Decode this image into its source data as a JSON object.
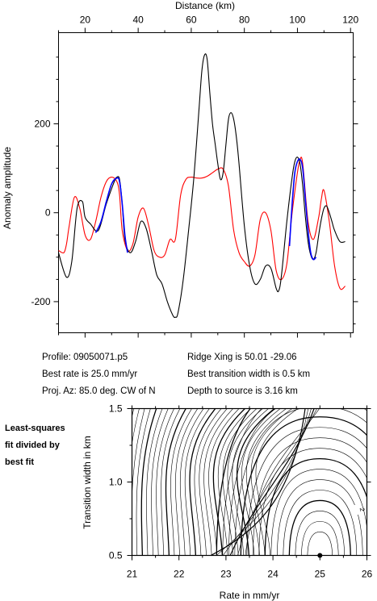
{
  "top_chart": {
    "xlabel": "Distance (km)",
    "ylabel": "Anomaly amplitude",
    "xlim": [
      10,
      121
    ],
    "ylim": [
      -270,
      405
    ],
    "x_ticks": [
      "20",
      "40",
      "60",
      "80",
      "100",
      "120"
    ],
    "y_ticks": [
      "200",
      "0",
      "-200"
    ]
  },
  "info": {
    "profile": "Profile: 09050071.p5",
    "best_rate": "Best rate is 25.0 mm/yr",
    "proj_az": "Proj. Az: 85.0 deg. CW of N",
    "ridge_xing": "Ridge Xing is 50.01 -29.06",
    "best_transition": "Best transition width is 0.5 km",
    "depth": "Depth to source is   3.16 km"
  },
  "side_note": [
    "Least-squares",
    "fit divided by",
    "best fit"
  ],
  "bottom_chart": {
    "xlabel": "Rate in mm/yr",
    "ylabel": "Transition width in km",
    "x_ticks": [
      "21",
      "22",
      "23",
      "24",
      "25",
      "26"
    ],
    "y_ticks": [
      "1.5",
      "1.0",
      "0.5"
    ],
    "contour_label": "2",
    "best_fit_rate": 25.0,
    "best_fit_width": 0.5
  },
  "chart_data": [
    {
      "type": "line",
      "xlabel": "Distance (km)",
      "ylabel": "Anomaly amplitude",
      "xlim": [
        10,
        121
      ],
      "ylim": [
        -270,
        405
      ],
      "series": [
        {
          "color": "#000000",
          "x": [
            10,
            13,
            15,
            17,
            19,
            20,
            22,
            25,
            28,
            31,
            32,
            33,
            34,
            35,
            37,
            39,
            41,
            43,
            45,
            47,
            49,
            51,
            53,
            54,
            55,
            57,
            59,
            61,
            63,
            64,
            65,
            66,
            67,
            68,
            69,
            70,
            71,
            72,
            73,
            74,
            75,
            76,
            77,
            78,
            80,
            82,
            84,
            86,
            88,
            90,
            92,
            93,
            94,
            96,
            98,
            99,
            100,
            101,
            102,
            103,
            104,
            105,
            106,
            107,
            108,
            109,
            110,
            111,
            112,
            113,
            114,
            116,
            118
          ],
          "y": [
            -90,
            -145,
            -110,
            10,
            25,
            -10,
            -25,
            -40,
            20,
            70,
            80,
            75,
            20,
            -60,
            -90,
            -65,
            -20,
            -35,
            -85,
            -140,
            -160,
            -200,
            -230,
            -235,
            -225,
            -150,
            -40,
            80,
            240,
            320,
            355,
            345,
            270,
            200,
            155,
            110,
            75,
            90,
            150,
            210,
            225,
            210,
            170,
            110,
            -30,
            -120,
            -160,
            -150,
            -120,
            -125,
            -170,
            -175,
            -140,
            -20,
            80,
            115,
            125,
            110,
            60,
            -10,
            -65,
            -95,
            -105,
            -90,
            -50,
            -15,
            10,
            15,
            0,
            -20,
            -40,
            -65,
            -65
          ]
        },
        {
          "color": "#ff0000",
          "x": [
            10,
            12,
            13,
            14,
            16,
            18,
            20,
            22,
            24,
            26,
            28,
            30,
            32,
            33,
            34,
            36,
            38,
            40,
            42,
            44,
            46,
            48,
            50,
            52,
            54,
            56,
            58,
            60,
            62,
            64,
            66,
            68,
            70,
            72,
            74,
            76,
            78,
            80,
            82,
            84,
            86,
            88,
            90,
            92,
            94,
            96,
            98,
            100,
            101,
            102,
            104,
            106,
            108,
            109,
            110,
            112,
            114,
            116,
            118
          ],
          "y": [
            -85,
            -90,
            -70,
            -30,
            35,
            10,
            -50,
            -60,
            -20,
            35,
            70,
            80,
            70,
            40,
            -40,
            -85,
            -70,
            -10,
            10,
            -30,
            -85,
            -100,
            -95,
            -60,
            -60,
            40,
            75,
            80,
            78,
            78,
            82,
            90,
            98,
            98,
            60,
            -40,
            -90,
            -110,
            -120,
            -95,
            -15,
            0,
            -40,
            -130,
            -150,
            -115,
            0,
            90,
            120,
            110,
            -20,
            -60,
            -10,
            30,
            50,
            -20,
            -120,
            -170,
            -165
          ]
        },
        {
          "color": "#0000ff",
          "x": [
            24,
            26,
            28,
            30,
            32,
            33,
            34,
            35,
            36,
            97,
            98,
            99,
            100,
            101,
            102,
            103,
            104,
            105,
            106,
            107
          ],
          "y": [
            -45,
            -20,
            25,
            65,
            78,
            70,
            20,
            -50,
            -90,
            -75,
            20,
            90,
            115,
            120,
            100,
            30,
            -40,
            -90,
            -105,
            -100
          ]
        }
      ]
    },
    {
      "type": "contour",
      "xlabel": "Rate in mm/yr",
      "ylabel": "Transition width in km",
      "xlim": [
        21,
        26
      ],
      "ylim": [
        0.5,
        1.5
      ],
      "best_fit": {
        "x": 25.0,
        "y": 0.5
      },
      "labeled_contour": "2"
    }
  ]
}
